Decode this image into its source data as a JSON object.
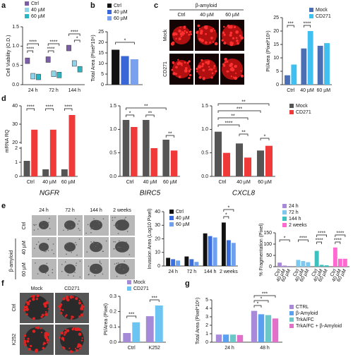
{
  "panels": {
    "letters": [
      "a",
      "b",
      "c",
      "d",
      "e",
      "f",
      "g"
    ],
    "c_images": {
      "treatment": "β-amyloid",
      "columns": [
        "Ctrl",
        "40 µM",
        "60 µM"
      ],
      "rows": [
        "Mock",
        "CD271"
      ]
    },
    "e_images": {
      "treatment": "β-amyloid",
      "columns": [
        "24 h",
        "72 h",
        "144 h",
        "2 weeks"
      ],
      "rows": [
        "Ctrl",
        "40 µM",
        "60 µM"
      ]
    },
    "f_images": {
      "columns": [
        "Mock",
        "CD271"
      ],
      "rows": [
        "Ctrl",
        "K252"
      ]
    }
  },
  "chart_data": [
    {
      "type": "box",
      "ylabel": "Cell Viability (O.D.)",
      "categories": [
        "24 h",
        "72 h",
        "144 h"
      ],
      "series": [
        {
          "name": "Ctrl",
          "color": "#7b5ea7",
          "values": [
            0.62,
            0.65,
            0.95
          ]
        },
        {
          "name": "40 µM",
          "color": "#8fd3ea",
          "values": [
            0.22,
            0.28,
            0.55
          ]
        },
        {
          "name": "60 µM",
          "color": "#2bb5c0",
          "values": [
            0.2,
            0.25,
            0.4
          ]
        }
      ],
      "ylim": [
        0,
        1.5
      ],
      "yticks": [
        {
          "value": 0,
          "label": "0.0"
        },
        0.5,
        {
          "value": 1,
          "label": "1.0"
        },
        1.5
      ],
      "annotations": [
        "****",
        "****",
        "****",
        "****",
        "****",
        "*"
      ]
    },
    {
      "type": "bar",
      "ylabel": "Total Area (Pixel*10⁶)",
      "categories": [
        null
      ],
      "series": [
        {
          "name": "Ctrl",
          "color": "#111111",
          "values": [
            16.5
          ]
        },
        {
          "name": "40 µM",
          "color": "#3a67d8",
          "values": [
            13.5
          ]
        },
        {
          "name": "60 µM",
          "color": "#7aa0f0",
          "values": [
            12
          ]
        }
      ],
      "ylim": [
        0,
        25
      ],
      "yticks": [
        0,
        5,
        10,
        15,
        20,
        25
      ],
      "annotations": [
        "*"
      ]
    },
    {
      "type": "bar",
      "ylabel": "PI/Area (Pixel*10⁶)",
      "categories": [
        "Ctrl",
        "40 µM",
        "60 µM"
      ],
      "series": [
        {
          "name": "Mock",
          "color": "#4a6fb5",
          "values": [
            3.5,
            13.5,
            14.5
          ]
        },
        {
          "name": "CD271",
          "color": "#3fc0f0",
          "values": [
            7.5,
            20,
            15.5
          ]
        }
      ],
      "ylim": [
        0,
        25
      ],
      "yticks": [
        0,
        5,
        10,
        15,
        20,
        25
      ],
      "annotations": [
        "***",
        "****"
      ]
    },
    {
      "type": "bar",
      "title": "NGFR",
      "ylabel": "mRNA RQ",
      "categories": [
        "Ctrl",
        "40 µM",
        "60 µM"
      ],
      "series": [
        {
          "color": "#555555",
          "values": [
            1.1,
            0.5,
            0.5
          ]
        },
        {
          "color": "#f03a3a",
          "values": [
            27,
            27,
            35
          ]
        }
      ],
      "ylim": [
        0,
        40
      ],
      "axis_break": [
        2,
        20
      ],
      "yticks": [
        0,
        1,
        2,
        20,
        30,
        40
      ],
      "annotations": [
        "****",
        "****",
        "****"
      ]
    },
    {
      "type": "bar",
      "title": "BIRC5",
      "categories": [
        "Ctrl",
        "40 µM",
        "60 µM"
      ],
      "series": [
        {
          "color": "#555555",
          "values": [
            1.2,
            1.2,
            0.78
          ]
        },
        {
          "color": "#f03a3a",
          "values": [
            1.05,
            0.6,
            0.55
          ]
        }
      ],
      "ylim": [
        0,
        1.5
      ],
      "yticks": [
        {
          "value": 0,
          "label": "0.0"
        },
        0.5,
        {
          "value": 1,
          "label": "1.0"
        },
        1.5
      ],
      "annotations": [
        "**",
        "*",
        "**",
        "**"
      ]
    },
    {
      "type": "bar",
      "title": "CXCL8",
      "categories": [
        "Ctrl",
        "40 µM",
        "60 µM"
      ],
      "series": [
        {
          "name": "Mock",
          "color": "#555555",
          "values": [
            0.95,
            0.7,
            0.55
          ]
        },
        {
          "name": "CD271",
          "color": "#f03a3a",
          "values": [
            0.5,
            0.4,
            0.65
          ]
        }
      ],
      "ylim": [
        0,
        1.5
      ],
      "yticks": [
        {
          "value": 0,
          "label": "0.0"
        },
        0.5,
        {
          "value": 1,
          "label": "1.0"
        },
        1.5
      ],
      "annotations": [
        "**",
        "***",
        "**",
        "****",
        "**",
        "*"
      ]
    },
    {
      "type": "bar",
      "ylabel": "Invasion Area (Log10 Pixel)",
      "categories": [
        "24 h",
        "72 h",
        "144 h",
        "2 weeks"
      ],
      "series": [
        {
          "name": "Ctrl",
          "color": "#111111",
          "values": [
            6,
            7,
            24,
            32
          ]
        },
        {
          "name": "40 µM",
          "color": "#3a6fe0",
          "values": [
            5,
            5,
            22,
            19
          ]
        },
        {
          "name": "60 µM",
          "color": "#6ea0f0",
          "values": [
            4,
            3,
            21,
            17
          ]
        }
      ],
      "ylim": [
        0,
        40
      ],
      "yticks": [
        0,
        10,
        20,
        30,
        40
      ],
      "annotations": [
        "*",
        "*"
      ]
    },
    {
      "type": "bar",
      "ylabel": "% Fragmentation (Pixel)",
      "categories": [
        "Ctrl",
        "40 µM",
        "60 µM"
      ],
      "group_by": "series",
      "series": [
        {
          "name": "24 h",
          "color": "#a88ad8",
          "values": [
            18,
            5,
            3
          ]
        },
        {
          "name": "72 h",
          "color": "#7cc8ee",
          "values": [
            30,
            25,
            20
          ]
        },
        {
          "name": "144 h",
          "color": "#3cc0c0",
          "values": [
            70,
            8,
            6
          ]
        },
        {
          "name": "2 weeks",
          "color": "#ff6ad0",
          "values": [
            85,
            35,
            35
          ]
        }
      ],
      "ylim": [
        0,
        150
      ],
      "yticks": [
        0,
        50,
        100,
        150
      ],
      "annotations": [
        "*",
        "****",
        "****",
        "****",
        "****",
        "****"
      ]
    },
    {
      "type": "bar",
      "ylabel": "PI/Area (Pixel)",
      "categories": [
        "Ctrl",
        "K252"
      ],
      "series": [
        {
          "name": "Mock",
          "color": "#a58ad8",
          "values": [
            0.06,
            0.17
          ]
        },
        {
          "name": "CD271",
          "color": "#6cc4f2",
          "values": [
            0.13,
            0.24
          ]
        }
      ],
      "ylim": [
        0,
        0.3
      ],
      "yticks": [
        {
          "value": 0,
          "label": "0.0"
        },
        0.1,
        0.2,
        0.3
      ],
      "annotations": [
        "***",
        "***"
      ]
    },
    {
      "type": "bar",
      "ylabel": "Total Area (Pixel*10⁶)",
      "categories": [
        "24 h",
        "48 h"
      ],
      "series": [
        {
          "name": "CTRL",
          "color": "#a88ad8",
          "values": [
            0.9,
            3.7
          ]
        },
        {
          "name": "β-Amyloid",
          "color": "#5aa0f0",
          "values": [
            0.9,
            3.3
          ]
        },
        {
          "name": "TrkA/FC",
          "color": "#6cc8c8",
          "values": [
            0.9,
            3.2
          ]
        },
        {
          "name": "TrkA/FC + β-Amyloid",
          "color": "#e070c8",
          "values": [
            0.85,
            2.8
          ]
        }
      ],
      "ylim": [
        0,
        5
      ],
      "yticks": [
        0,
        1,
        2,
        3,
        4,
        5
      ],
      "annotations": [
        "*",
        "*",
        "***"
      ]
    }
  ]
}
